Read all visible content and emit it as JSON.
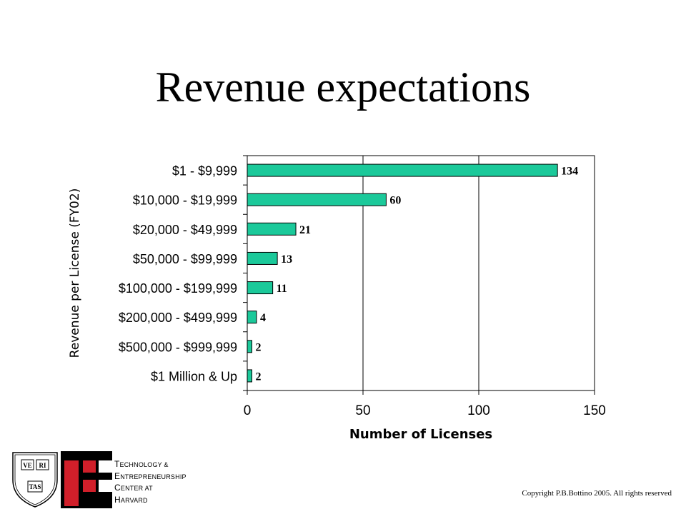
{
  "slide": {
    "title": "Revenue expectations",
    "copyright": "Copyright P.B.Bottino 2005. All rights reserved"
  },
  "logos": {
    "shield_words": [
      "VE",
      "RI",
      "TAS"
    ],
    "center_name_lines": [
      "Technology &",
      "Entrepreneurship",
      "Center at",
      "Harvard"
    ]
  },
  "colors": {
    "bar_fill": "#1BC99A",
    "bar_stroke": "#000000",
    "grid": "#000000",
    "logo_red": "#D11F2A",
    "logo_black": "#000000"
  },
  "chart_data": {
    "type": "bar",
    "orientation": "horizontal",
    "categories": [
      "$1 - $9,999",
      "$10,000 - $19,999",
      "$20,000 - $49,999",
      "$50,000 - $99,999",
      "$100,000 - $199,999",
      "$200,000 - $499,999",
      "$500,000 -  $999,999",
      "$1 Million & Up"
    ],
    "values": [
      134,
      60,
      21,
      13,
      11,
      4,
      2,
      2
    ],
    "data_labels": [
      "134",
      "60",
      "21",
      "13",
      "11",
      "4",
      "2",
      "2"
    ],
    "xlabel": "Number of Licenses",
    "ylabel": "Revenue per License (FY02)",
    "xlim": [
      0,
      150
    ],
    "xticks": [
      0,
      50,
      100,
      150
    ],
    "xtick_labels": [
      "0",
      "50",
      "100",
      "150"
    ],
    "grid": "vertical",
    "legend": "none"
  }
}
